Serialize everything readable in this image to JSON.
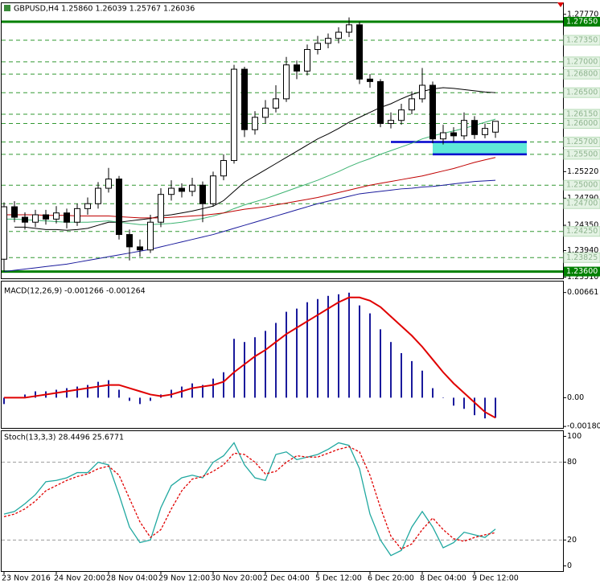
{
  "chart_data": [
    {
      "type": "candlestick",
      "title": "GBPUSD,H4 1.25860 1.26039 1.25767 1.26036",
      "categories": [
        "23 Nov 2016",
        null,
        null,
        null,
        null,
        "24 Nov 20:00",
        null,
        null,
        null,
        null,
        "28 Nov 04:00",
        null,
        null,
        null,
        null,
        "29 Nov 12:00",
        null,
        null,
        null,
        null,
        "30 Nov 20:00",
        null,
        null,
        null,
        null,
        "2 Dec 04:00",
        null,
        null,
        null,
        null,
        "5 Dec 12:00",
        null,
        null,
        null,
        null,
        "6 Dec 20:00",
        null,
        null,
        null,
        null,
        "8 Dec 04:00",
        null,
        null,
        null,
        null,
        "9 Dec 12:00",
        null,
        null
      ],
      "open": [
        1.238,
        1.2465,
        1.2448,
        1.244,
        1.2452,
        1.2445,
        1.2455,
        1.244,
        1.2462,
        1.247,
        1.2495,
        1.251,
        1.242,
        1.24,
        1.2395,
        1.244,
        1.2485,
        1.2495,
        1.249,
        1.25,
        1.247,
        1.2515,
        1.254,
        1.2688,
        1.259,
        1.261,
        1.2625,
        1.264,
        1.2695,
        1.2685,
        1.272,
        1.273,
        1.2738,
        1.2748,
        1.276,
        1.2672,
        1.2668,
        1.26,
        1.2605,
        1.2622,
        1.264,
        1.2662,
        1.2575,
        1.2585,
        1.258,
        1.2605,
        1.2582,
        1.2586
      ],
      "high": [
        1.2472,
        1.2474,
        1.2456,
        1.246,
        1.246,
        1.2466,
        1.2462,
        1.247,
        1.248,
        1.2505,
        1.2528,
        1.2515,
        1.2428,
        1.2412,
        1.2452,
        1.2495,
        1.2508,
        1.2503,
        1.2512,
        1.2506,
        1.2522,
        1.255,
        1.2695,
        1.2692,
        1.262,
        1.2638,
        1.2662,
        1.2708,
        1.2702,
        1.2728,
        1.2742,
        1.2746,
        1.2756,
        1.2772,
        1.2765,
        1.268,
        1.2672,
        1.2618,
        1.2632,
        1.2652,
        1.269,
        1.2668,
        1.2598,
        1.2594,
        1.2618,
        1.2612,
        1.26,
        1.26039
      ],
      "low": [
        1.236,
        1.244,
        1.2428,
        1.2432,
        1.2436,
        1.2438,
        1.243,
        1.2434,
        1.2452,
        1.2462,
        1.2488,
        1.2412,
        1.2378,
        1.2384,
        1.239,
        1.2432,
        1.2475,
        1.248,
        1.2482,
        1.244,
        1.2465,
        1.2508,
        1.2535,
        1.2578,
        1.2582,
        1.26,
        1.2618,
        1.2635,
        1.2672,
        1.2678,
        1.2712,
        1.2722,
        1.273,
        1.274,
        1.2664,
        1.2658,
        1.2594,
        1.2592,
        1.2598,
        1.2615,
        1.2634,
        1.2568,
        1.2566,
        1.257,
        1.2574,
        1.2575,
        1.2576,
        1.25767
      ],
      "close": [
        1.2465,
        1.2448,
        1.244,
        1.2452,
        1.2445,
        1.2455,
        1.244,
        1.2462,
        1.247,
        1.2495,
        1.251,
        1.242,
        1.24,
        1.2395,
        1.244,
        1.2485,
        1.2495,
        1.249,
        1.25,
        1.247,
        1.2515,
        1.254,
        1.2688,
        1.259,
        1.261,
        1.2625,
        1.264,
        1.2695,
        1.2685,
        1.272,
        1.273,
        1.2738,
        1.2748,
        1.276,
        1.2672,
        1.2668,
        1.26,
        1.2605,
        1.2622,
        1.264,
        1.2662,
        1.2575,
        1.2585,
        1.258,
        1.2605,
        1.2582,
        1.2592,
        1.26036
      ],
      "up_color": "#ffffff",
      "down_color": "#000000",
      "series": [
        {
          "color": "#000000",
          "values": [
            null,
            1.2432,
            1.2432,
            1.243,
            1.2428,
            1.2428,
            1.2427,
            1.2428,
            1.243,
            1.2435,
            1.244,
            1.244,
            1.2442,
            1.2444,
            1.2446,
            1.245,
            1.2452,
            1.2455,
            1.2458,
            1.2462,
            1.2466,
            1.2475,
            1.249,
            1.2505,
            1.2515,
            1.2525,
            1.2535,
            1.2545,
            1.2555,
            1.2565,
            1.2575,
            1.2583,
            1.2592,
            1.2602,
            1.261,
            1.2618,
            1.2626,
            1.2632,
            1.264,
            1.2647,
            1.2652,
            1.2656,
            1.2658,
            1.2657,
            1.2655,
            1.2653,
            1.2651,
            1.265
          ]
        },
        {
          "color": "#3cb371",
          "values": [
            1.2445,
            1.2445,
            1.2444,
            1.2443,
            1.2442,
            1.2441,
            1.244,
            1.244,
            1.244,
            1.2441,
            1.2442,
            1.244,
            1.2438,
            1.2436,
            1.2436,
            1.2437,
            1.2438,
            1.244,
            1.2443,
            1.2446,
            1.245,
            1.2455,
            1.2462,
            1.2468,
            1.2473,
            1.2478,
            1.2484,
            1.249,
            1.2496,
            1.2502,
            1.2508,
            1.2515,
            1.2522,
            1.253,
            1.2537,
            1.2543,
            1.255,
            1.2556,
            1.2562,
            1.2568,
            1.2575,
            1.258,
            1.2584,
            1.2588,
            1.2592,
            1.2597,
            1.2602,
            1.2607
          ]
        },
        {
          "color": "#c00000",
          "values": [
            1.2452,
            1.2452,
            1.2452,
            1.2452,
            1.2451,
            1.2451,
            1.2451,
            1.245,
            1.245,
            1.245,
            1.245,
            1.2449,
            1.2448,
            1.2447,
            1.2447,
            1.2447,
            1.2448,
            1.2449,
            1.245,
            1.2451,
            1.2453,
            1.2455,
            1.2458,
            1.2461,
            1.2463,
            1.2465,
            1.2468,
            1.2471,
            1.2474,
            1.2477,
            1.248,
            1.2484,
            1.2488,
            1.2492,
            1.2496,
            1.25,
            1.2503,
            1.2506,
            1.2509,
            1.2512,
            1.2515,
            1.2519,
            1.2523,
            1.2527,
            1.2532,
            1.2537,
            1.2541,
            1.2545
          ]
        },
        {
          "color": "#1a1a9c",
          "values": [
            1.236,
            1.2362,
            1.2364,
            1.2366,
            1.2368,
            1.237,
            1.2372,
            1.2375,
            1.2378,
            1.2381,
            1.2384,
            1.2387,
            1.239,
            1.2393,
            1.2396,
            1.24,
            1.2404,
            1.2408,
            1.2412,
            1.2416,
            1.242,
            1.2425,
            1.243,
            1.2435,
            1.244,
            1.2445,
            1.245,
            1.2455,
            1.246,
            1.2465,
            1.247,
            1.2474,
            1.2478,
            1.2482,
            1.2486,
            1.2488,
            1.249,
            1.2492,
            1.2494,
            1.2495,
            1.2497,
            1.2498,
            1.25,
            1.2502,
            1.2504,
            1.2506,
            1.2507,
            1.2508
          ]
        }
      ],
      "ylim": [
        1.2349,
        1.2795
      ],
      "yticks": [
        {
          "value": 1.2777,
          "label": "1.27770"
        },
        {
          "value": 1.2522,
          "label": "1.25220"
        },
        {
          "value": 1.2479,
          "label": "1.24790"
        },
        {
          "value": 1.2435,
          "label": "1.24350"
        },
        {
          "value": 1.2394,
          "label": "1.23940"
        },
        {
          "value": 1.2351,
          "label": "1.23510"
        }
      ],
      "level_color": "#008000",
      "levels": [
        {
          "value": 1.2765,
          "label": "1.27650",
          "style": "solid"
        },
        {
          "value": 1.2735,
          "label": "1.27350",
          "style": "dashed"
        },
        {
          "value": 1.27,
          "label": "1.27000",
          "style": "dashed"
        },
        {
          "value": 1.268,
          "label": "1.26800",
          "style": "dashed"
        },
        {
          "value": 1.265,
          "label": "1.26500",
          "style": "dashed"
        },
        {
          "value": 1.2615,
          "label": "1.26150",
          "style": "dashed"
        },
        {
          "value": 1.26,
          "label": "1.26000",
          "style": "dashed"
        },
        {
          "value": 1.257,
          "label": "1.25700",
          "style": "dashed"
        },
        {
          "value": 1.255,
          "label": "1.25500",
          "style": "dashed"
        },
        {
          "value": 1.25,
          "label": "1.25000",
          "style": "dashed"
        },
        {
          "value": 1.247,
          "label": "1.24700",
          "style": "dashed"
        },
        {
          "value": 1.2425,
          "label": "1.24250",
          "style": "dashed"
        },
        {
          "value": 1.23825,
          "label": "1.23825",
          "style": "dashed"
        },
        {
          "value": 1.236,
          "label": "1.23600",
          "style": "solid"
        }
      ],
      "zone": {
        "top": 1.257,
        "bottom": 1.255,
        "from": 41,
        "to": 50,
        "line_from": 37,
        "color": "#5fe8d8",
        "line_color": "#0000cd"
      }
    },
    {
      "type": "combo",
      "title": "MACD(12,26,9) -0.001266 -0.001264",
      "color": "#1a1a9c",
      "values": [
        -0.0004,
        0,
        0.0002,
        0.0004,
        0.0004,
        0.0005,
        0.0006,
        0.0007,
        0.0008,
        0.001,
        0.0011,
        0.0005,
        -0.0002,
        -0.0004,
        -0.0002,
        0.0002,
        0.0005,
        0.0007,
        0.0009,
        0.0008,
        0.0012,
        0.0016,
        0.0037,
        0.0035,
        0.0038,
        0.0042,
        0.0047,
        0.0054,
        0.0056,
        0.006,
        0.0062,
        0.0064,
        0.0065,
        0.0066,
        0.0058,
        0.0053,
        0.0043,
        0.0035,
        0.0028,
        0.0023,
        0.0017,
        0.0006,
        0,
        -0.0005,
        -0.0007,
        -0.0011,
        -0.0013,
        -0.001266
      ],
      "series": [
        {
          "color": "#e00000",
          "values": [
            0,
            0,
            0,
            0.0001,
            0.0002,
            0.0003,
            0.0004,
            0.0005,
            0.0006,
            0.0007,
            0.0008,
            0.0008,
            0.0006,
            0.0004,
            0.0002,
            0.0001,
            0.0002,
            0.0004,
            0.0006,
            0.0007,
            0.0008,
            0.001,
            0.0016,
            0.0021,
            0.0026,
            0.003,
            0.0035,
            0.004,
            0.0044,
            0.0048,
            0.0052,
            0.0056,
            0.006,
            0.0063,
            0.0063,
            0.0061,
            0.0057,
            0.0051,
            0.0045,
            0.0039,
            0.0032,
            0.0024,
            0.0016,
            0.0009,
            0.0003,
            -0.0003,
            -0.0009,
            -0.001264
          ]
        }
      ],
      "ylim": [
        -0.0019,
        0.0073
      ],
      "yticks": [
        0.00661,
        {
          "value": 0,
          "label": "0.00"
        },
        -0.001806
      ]
    },
    {
      "type": "line",
      "title": "Stoch(13,3,3) 28.4496 25.6771",
      "series": [
        {
          "color": "#20a8a0",
          "dashed": false,
          "values": [
            40,
            42,
            48,
            55,
            65,
            66,
            68,
            72,
            72,
            80,
            78,
            55,
            30,
            18,
            20,
            45,
            62,
            68,
            70,
            68,
            80,
            85,
            95,
            78,
            68,
            66,
            86,
            88,
            82,
            84,
            86,
            90,
            95,
            93,
            75,
            40,
            20,
            8,
            12,
            30,
            42,
            30,
            14,
            18,
            26,
            24,
            22,
            28.4496
          ]
        },
        {
          "color": "#e00000",
          "dashed": true,
          "values": [
            38,
            40,
            44,
            50,
            58,
            62,
            66,
            69,
            71,
            75,
            77,
            70,
            52,
            34,
            22,
            28,
            44,
            58,
            67,
            69,
            73,
            78,
            87,
            86,
            80,
            71,
            73,
            80,
            85,
            84,
            84,
            87,
            90,
            92,
            88,
            70,
            45,
            23,
            13,
            17,
            28,
            37,
            28,
            21,
            19,
            22,
            24,
            25.6771
          ]
        }
      ],
      "ylim": [
        -4,
        104
      ],
      "yticks": [
        100,
        80,
        20,
        0
      ],
      "levels": [
        80,
        20
      ]
    }
  ]
}
